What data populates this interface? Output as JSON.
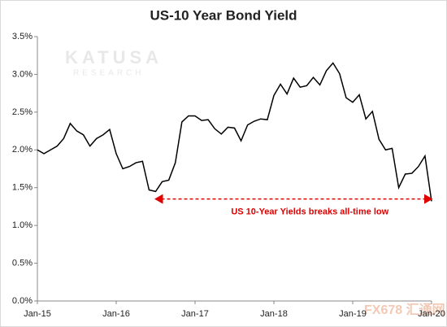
{
  "chart_data": {
    "type": "line",
    "title": "US-10 Year Bond Yield",
    "x": [
      "2015-01",
      "2015-02",
      "2015-03",
      "2015-04",
      "2015-05",
      "2015-06",
      "2015-07",
      "2015-08",
      "2015-09",
      "2015-10",
      "2015-11",
      "2015-12",
      "2016-01",
      "2016-02",
      "2016-03",
      "2016-04",
      "2016-05",
      "2016-06",
      "2016-07",
      "2016-08",
      "2016-09",
      "2016-10",
      "2016-11",
      "2016-12",
      "2017-01",
      "2017-02",
      "2017-03",
      "2017-04",
      "2017-05",
      "2017-06",
      "2017-07",
      "2017-08",
      "2017-09",
      "2017-10",
      "2017-11",
      "2017-12",
      "2018-01",
      "2018-02",
      "2018-03",
      "2018-04",
      "2018-05",
      "2018-06",
      "2018-07",
      "2018-08",
      "2018-09",
      "2018-10",
      "2018-11",
      "2018-12",
      "2019-01",
      "2019-02",
      "2019-03",
      "2019-04",
      "2019-05",
      "2019-06",
      "2019-07",
      "2019-08",
      "2019-09",
      "2019-10",
      "2019-11",
      "2019-12",
      "2020-01"
    ],
    "series": [
      {
        "name": "US 10-Year Yield",
        "color": "#000000",
        "values": [
          2.0,
          1.95,
          2.0,
          2.05,
          2.15,
          2.35,
          2.25,
          2.2,
          2.05,
          2.15,
          2.2,
          2.27,
          1.95,
          1.75,
          1.78,
          1.83,
          1.85,
          1.47,
          1.45,
          1.58,
          1.6,
          1.83,
          2.37,
          2.45,
          2.45,
          2.39,
          2.4,
          2.28,
          2.21,
          2.3,
          2.29,
          2.12,
          2.33,
          2.38,
          2.41,
          2.4,
          2.72,
          2.87,
          2.74,
          2.95,
          2.83,
          2.85,
          2.96,
          2.86,
          3.05,
          3.15,
          3.01,
          2.69,
          2.63,
          2.73,
          2.41,
          2.51,
          2.14,
          2.0,
          2.02,
          1.5,
          1.68,
          1.69,
          1.78,
          1.92,
          1.32
        ]
      }
    ],
    "xlim": [
      "2015-01",
      "2020-01"
    ],
    "xticks": [
      {
        "value": "2015-01",
        "label": "Jan-15"
      },
      {
        "value": "2016-01",
        "label": "Jan-16"
      },
      {
        "value": "2017-01",
        "label": "Jan-17"
      },
      {
        "value": "2018-01",
        "label": "Jan-18"
      },
      {
        "value": "2019-01",
        "label": "Jan-19"
      },
      {
        "value": "2020-01",
        "label": "Jan-20"
      }
    ],
    "ylim": [
      0,
      3.5
    ],
    "yticks": [
      {
        "value": 0,
        "label": "0.0%"
      },
      {
        "value": 0.5,
        "label": "0.5%"
      },
      {
        "value": 1,
        "label": "1.0%"
      },
      {
        "value": 1.5,
        "label": "1.5%"
      },
      {
        "value": 2,
        "label": "2.0%"
      },
      {
        "value": 2.5,
        "label": "2.5%"
      },
      {
        "value": 3,
        "label": "3.0%"
      },
      {
        "value": 3.5,
        "label": "3.5%"
      }
    ],
    "grid": false,
    "annotation": {
      "text": "US 10-Year Yields breaks all-time low",
      "x_start": "2016-07",
      "x_end": "2020-01",
      "y": 1.35,
      "color": "#e00000"
    },
    "watermarks": [
      "KATUSA",
      "RESEARCH",
      "FX678 汇通网"
    ]
  }
}
